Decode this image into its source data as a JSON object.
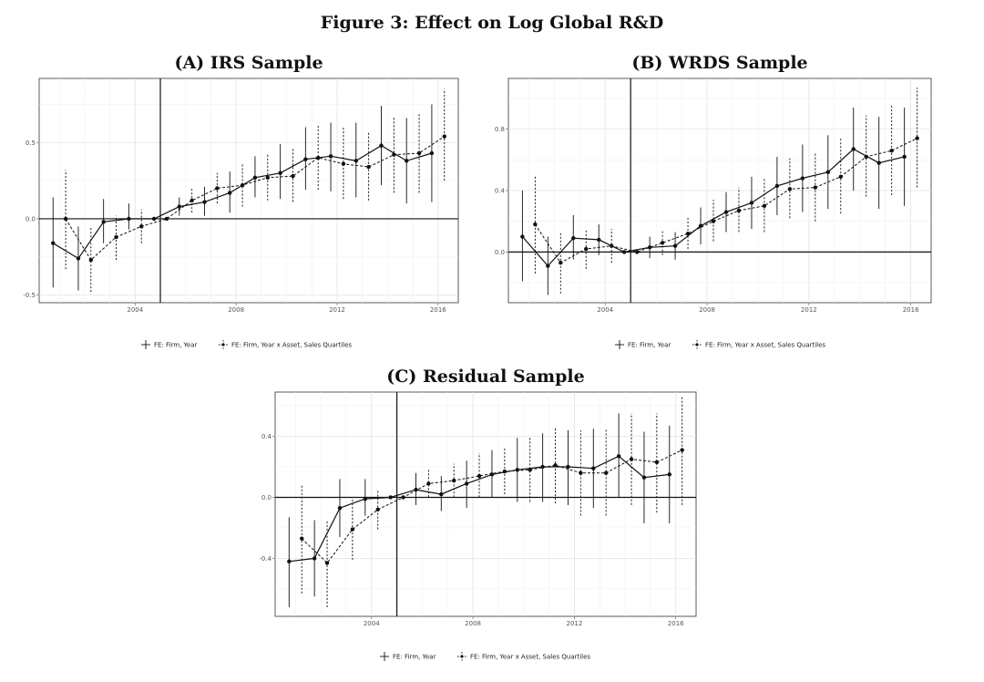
{
  "figure_title": "Figure 3: Effect on Log Global R&D",
  "legend": {
    "solid": "FE: Firm, Year",
    "dashed": "FE: Firm, Year x Asset, Sales Quartiles"
  },
  "chart_data": [
    {
      "type": "line",
      "title": "(A) IRS Sample",
      "xlabel": "",
      "ylabel": "",
      "xlim": [
        2000.2,
        2016.8
      ],
      "ylim": [
        -0.55,
        0.92
      ],
      "xticks": [
        2004,
        2008,
        2012,
        2016
      ],
      "yticks": [
        -0.5,
        0.0,
        0.5
      ],
      "reference_x": 2005,
      "reference_y": 0,
      "grid": true,
      "legend_position": "bottom",
      "series": [
        {
          "name": "FE: Firm, Year",
          "style": "solid",
          "x": [
            2001,
            2002,
            2003,
            2004,
            2005,
            2006,
            2007,
            2008,
            2009,
            2010,
            2011,
            2012,
            2013,
            2014,
            2015,
            2016
          ],
          "y": [
            -0.16,
            -0.26,
            -0.02,
            0.0,
            0.0,
            0.08,
            0.11,
            0.17,
            0.27,
            0.3,
            0.39,
            0.41,
            0.38,
            0.48,
            0.38,
            0.43
          ],
          "lo": [
            -0.45,
            -0.47,
            -0.16,
            -0.07,
            0.0,
            0.02,
            0.02,
            0.04,
            0.14,
            0.13,
            0.19,
            0.18,
            0.14,
            0.22,
            0.1,
            0.11
          ],
          "hi": [
            0.14,
            -0.05,
            0.13,
            0.1,
            0.0,
            0.14,
            0.21,
            0.31,
            0.41,
            0.49,
            0.6,
            0.63,
            0.63,
            0.74,
            0.66,
            0.75
          ]
        },
        {
          "name": "FE: Firm, Year x Asset, Sales Quartiles",
          "style": "dashed",
          "x": [
            2001,
            2002,
            2003,
            2004,
            2005,
            2006,
            2007,
            2008,
            2009,
            2010,
            2011,
            2012,
            2013,
            2014,
            2015,
            2016
          ],
          "y": [
            0.0,
            -0.27,
            -0.12,
            -0.05,
            0.0,
            0.12,
            0.2,
            0.22,
            0.27,
            0.28,
            0.4,
            0.36,
            0.34,
            0.42,
            0.43,
            0.54
          ],
          "lo": [
            -0.33,
            -0.48,
            -0.27,
            -0.16,
            0.0,
            0.04,
            0.1,
            0.08,
            0.12,
            0.11,
            0.19,
            0.13,
            0.12,
            0.17,
            0.17,
            0.25
          ],
          "hi": [
            0.32,
            -0.05,
            0.02,
            0.06,
            0.0,
            0.2,
            0.3,
            0.36,
            0.42,
            0.46,
            0.61,
            0.6,
            0.57,
            0.67,
            0.69,
            0.85
          ]
        }
      ]
    },
    {
      "type": "line",
      "title": "(B) WRDS Sample",
      "xlabel": "",
      "ylabel": "",
      "xlim": [
        2000.2,
        2016.8
      ],
      "ylim": [
        -0.33,
        1.13
      ],
      "xticks": [
        2004,
        2008,
        2012,
        2016
      ],
      "yticks": [
        0.0,
        0.4,
        0.8
      ],
      "reference_x": 2005,
      "reference_y": 0,
      "grid": true,
      "legend_position": "bottom",
      "series": [
        {
          "name": "FE: Firm, Year",
          "style": "solid",
          "x": [
            2001,
            2002,
            2003,
            2004,
            2005,
            2006,
            2007,
            2008,
            2009,
            2010,
            2011,
            2012,
            2013,
            2014,
            2015,
            2016
          ],
          "y": [
            0.1,
            -0.09,
            0.09,
            0.08,
            0.0,
            0.03,
            0.04,
            0.17,
            0.26,
            0.32,
            0.43,
            0.48,
            0.52,
            0.67,
            0.58,
            0.62
          ],
          "lo": [
            -0.19,
            -0.28,
            -0.05,
            -0.02,
            0.0,
            -0.04,
            -0.05,
            0.05,
            0.13,
            0.15,
            0.24,
            0.26,
            0.28,
            0.4,
            0.28,
            0.3
          ],
          "hi": [
            0.4,
            0.1,
            0.24,
            0.18,
            0.0,
            0.1,
            0.13,
            0.29,
            0.39,
            0.49,
            0.62,
            0.7,
            0.76,
            0.94,
            0.88,
            0.94
          ]
        },
        {
          "name": "FE: Firm, Year x Asset, Sales Quartiles",
          "style": "dashed",
          "x": [
            2001,
            2002,
            2003,
            2004,
            2005,
            2006,
            2007,
            2008,
            2009,
            2010,
            2011,
            2012,
            2013,
            2014,
            2015,
            2016
          ],
          "y": [
            0.18,
            -0.07,
            0.02,
            0.04,
            0.0,
            0.06,
            0.12,
            0.2,
            0.27,
            0.3,
            0.41,
            0.42,
            0.49,
            0.62,
            0.66,
            0.74
          ],
          "lo": [
            -0.14,
            -0.27,
            -0.11,
            -0.07,
            0.0,
            -0.02,
            0.02,
            0.07,
            0.13,
            0.13,
            0.22,
            0.2,
            0.25,
            0.36,
            0.37,
            0.42
          ],
          "hi": [
            0.5,
            0.13,
            0.15,
            0.15,
            0.0,
            0.14,
            0.23,
            0.34,
            0.42,
            0.48,
            0.61,
            0.65,
            0.74,
            0.89,
            0.96,
            1.07
          ]
        }
      ]
    },
    {
      "type": "line",
      "title": "(C) Residual Sample",
      "xlabel": "",
      "ylabel": "",
      "xlim": [
        2000.2,
        2016.8
      ],
      "ylim": [
        -0.78,
        0.69
      ],
      "xticks": [
        2004,
        2008,
        2012,
        2016
      ],
      "yticks": [
        -0.4,
        0.0,
        0.4
      ],
      "reference_x": 2005,
      "reference_y": 0,
      "grid": true,
      "legend_position": "bottom",
      "series": [
        {
          "name": "FE: Firm, Year",
          "style": "solid",
          "x": [
            2001,
            2002,
            2003,
            2004,
            2005,
            2006,
            2007,
            2008,
            2009,
            2010,
            2011,
            2012,
            2013,
            2014,
            2015,
            2016
          ],
          "y": [
            -0.42,
            -0.4,
            -0.07,
            -0.01,
            0.0,
            0.05,
            0.02,
            0.09,
            0.15,
            0.18,
            0.2,
            0.2,
            0.19,
            0.27,
            0.13,
            0.15
          ],
          "lo": [
            -0.72,
            -0.65,
            -0.26,
            -0.12,
            0.0,
            -0.05,
            -0.09,
            -0.07,
            0.0,
            -0.03,
            -0.03,
            -0.05,
            -0.07,
            0.0,
            -0.17,
            -0.17
          ],
          "hi": [
            -0.13,
            -0.15,
            0.12,
            0.12,
            0.0,
            0.16,
            0.14,
            0.24,
            0.31,
            0.39,
            0.42,
            0.44,
            0.45,
            0.55,
            0.43,
            0.47
          ]
        },
        {
          "name": "FE: Firm, Year x Asset, Sales Quartiles",
          "style": "dashed",
          "x": [
            2001,
            2002,
            2003,
            2004,
            2005,
            2006,
            2007,
            2008,
            2009,
            2010,
            2011,
            2012,
            2013,
            2014,
            2015,
            2016
          ],
          "y": [
            -0.27,
            -0.43,
            -0.21,
            -0.08,
            0.0,
            0.09,
            0.11,
            0.14,
            0.17,
            0.18,
            0.21,
            0.16,
            0.16,
            0.25,
            0.23,
            0.31
          ],
          "lo": [
            -0.63,
            -0.72,
            -0.41,
            -0.21,
            0.0,
            0.0,
            0.0,
            0.0,
            0.02,
            -0.03,
            -0.04,
            -0.12,
            -0.12,
            -0.05,
            -0.1,
            -0.05
          ],
          "hi": [
            0.08,
            -0.15,
            0.0,
            0.05,
            0.0,
            0.18,
            0.22,
            0.29,
            0.32,
            0.39,
            0.46,
            0.44,
            0.45,
            0.55,
            0.55,
            0.66
          ]
        }
      ]
    }
  ]
}
